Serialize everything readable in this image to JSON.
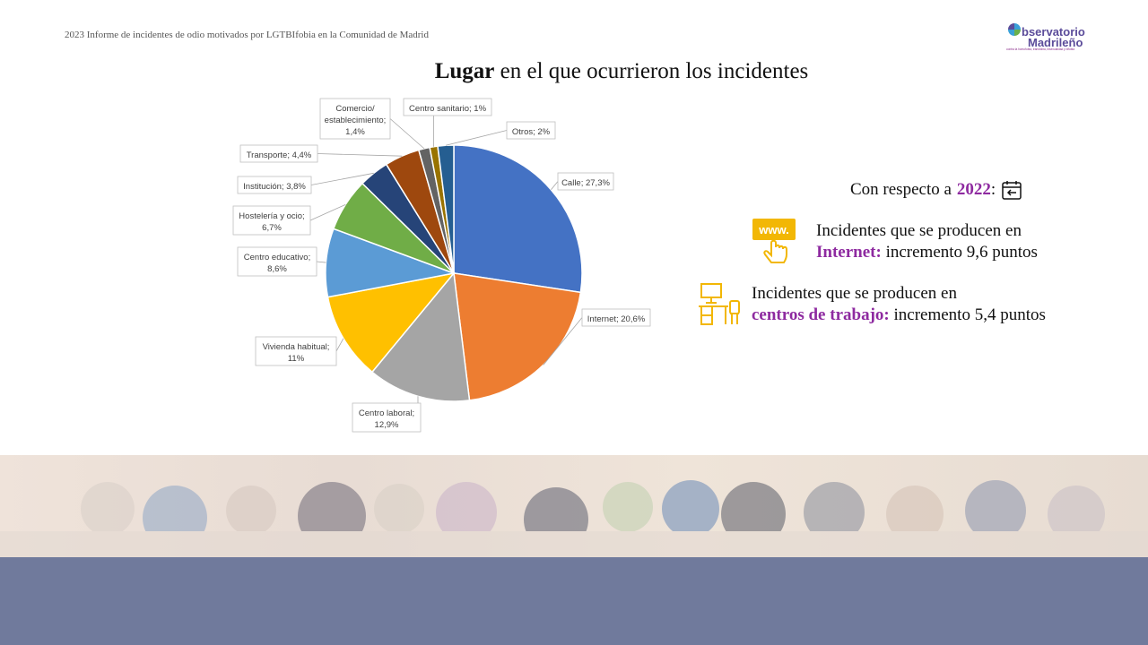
{
  "header": {
    "report_title": "2023 Informe de incidentes de odio motivados por LGTBIfobia en la Comunidad de Madrid",
    "logo_line1": "bservatorio",
    "logo_line2": "Madrileño",
    "logo_tagline": "contra la homofobia, transfobia, bisexualidad y bifobia"
  },
  "slide": {
    "title_bold": "Lugar",
    "title_rest": " en el que ocurrieron los incidentes"
  },
  "comparison": {
    "intro": "Con respecto a ",
    "year": "2022",
    "colon": ":",
    "internet_line1": "Incidentes que se producen en",
    "internet_keyword": "Internet:",
    "internet_rest": " incremento 9,6 puntos",
    "work_line1": "Incidentes que se producen en",
    "work_keyword": "centros de trabajo:",
    "work_rest": " incremento 5,4 puntos",
    "www_text": "www."
  },
  "chart_data": {
    "type": "pie",
    "title": "",
    "slices": [
      {
        "label": "Calle; 27,3%",
        "value": 27.3,
        "color": "#4472c4"
      },
      {
        "label": "Internet; 20,6%",
        "value": 20.6,
        "color": "#ed7d31"
      },
      {
        "label": "Centro laboral; 12,9%",
        "value": 12.9,
        "color": "#a5a5a5"
      },
      {
        "label": "Vivienda habitual; 11%",
        "value": 11,
        "color": "#ffc000"
      },
      {
        "label": "Centro educativo; 8,6%",
        "value": 8.6,
        "color": "#5b9bd5"
      },
      {
        "label": "Hostelería y ocio; 6,7%",
        "value": 6.7,
        "color": "#70ad47"
      },
      {
        "label": "Institución; 3,8%",
        "value": 3.8,
        "color": "#264478"
      },
      {
        "label": "Transporte; 4,4%",
        "value": 4.4,
        "color": "#9e480e"
      },
      {
        "label": "Comercio/ establecimiento; 1,4%",
        "value": 1.4,
        "color": "#636363"
      },
      {
        "label": "Centro sanitario; 1%",
        "value": 1,
        "color": "#997300"
      },
      {
        "label": "Otros; 2%",
        "value": 2,
        "color": "#255e91"
      }
    ]
  }
}
